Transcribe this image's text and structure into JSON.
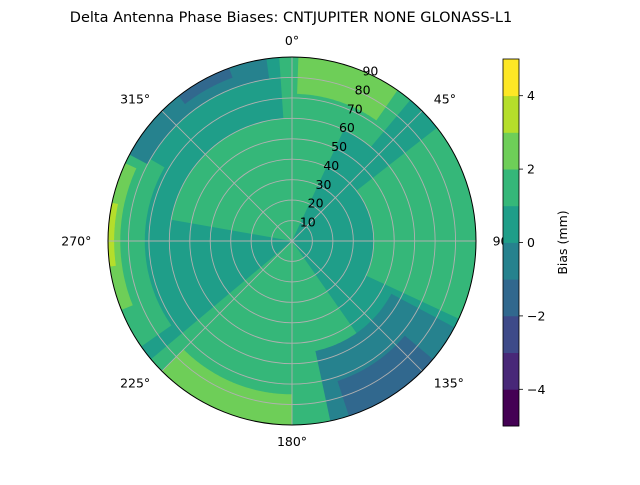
{
  "chart_data": {
    "type": "heatmap",
    "projection": "polar",
    "title": "Delta Antenna Phase Biases: CNTJUPITER      NONE GLONASS-L1",
    "colorbar": {
      "label": "Bias (mm)",
      "range": [
        -5,
        5
      ],
      "levels": [
        -5,
        -4.5,
        -4,
        -3.5,
        -3,
        -2.5,
        -2,
        -1.5,
        -1,
        -0.5,
        0,
        0.5,
        1,
        1.5,
        2,
        2.5,
        3,
        3.5,
        4,
        4.5,
        5
      ],
      "tick_values": [
        -4,
        -2,
        0,
        2,
        4
      ],
      "tick_labels": [
        "−4",
        "−2",
        "0",
        "2",
        "4"
      ],
      "colors": [
        "#440154",
        "#482878",
        "#3e4a89",
        "#31688e",
        "#26828e",
        "#1f9e89",
        "#35b779",
        "#6ece58",
        "#b5de2b",
        "#fde725"
      ],
      "placement": "right"
    },
    "azimuth_axis": {
      "direction": "clockwise",
      "zero_location": "top",
      "tick_values": [
        0,
        45,
        90,
        135,
        180,
        225,
        270,
        315
      ],
      "tick_labels": [
        "0°",
        "45°",
        "90",
        "135°",
        "180°",
        "225°",
        "270°",
        "315°"
      ]
    },
    "radial_axis": {
      "quantity": "zenith angle (deg)",
      "range": [
        0,
        90
      ],
      "tick_values": [
        10,
        20,
        30,
        40,
        50,
        60,
        70,
        80,
        90
      ],
      "tick_labels": [
        "10",
        "20",
        "30",
        "40",
        "50",
        "60",
        "70",
        "80",
        "90"
      ]
    },
    "grid": true,
    "regions": [
      {
        "level_range": [
          -0.5,
          0.5
        ],
        "description": "background"
      },
      {
        "level_range": [
          0.5,
          1.5
        ],
        "azimuth_range": [
          -80,
          25
        ],
        "radius_range": [
          0,
          60
        ]
      },
      {
        "level_range": [
          0.5,
          1.5
        ],
        "azimuth_range": [
          -4,
          40
        ],
        "radius_range": [
          60,
          90
        ]
      },
      {
        "level_range": [
          0.5,
          1.5
        ],
        "azimuth_range": [
          52,
          115
        ],
        "radius_range": [
          40,
          90
        ]
      },
      {
        "level_range": [
          0.5,
          1.5
        ],
        "azimuth_range": [
          145,
          230
        ],
        "radius_range": [
          0,
          90
        ]
      },
      {
        "level_range": [
          0.5,
          1.5
        ],
        "azimuth_range": [
          235,
          300
        ],
        "radius_range": [
          72,
          90
        ]
      },
      {
        "level_range": [
          1.5,
          2.5
        ],
        "azimuth_range": [
          2,
          35
        ],
        "radius_range": [
          72,
          90
        ]
      },
      {
        "level_range": [
          1.5,
          2.5
        ],
        "azimuth_range": [
          180,
          225
        ],
        "radius_range": [
          75,
          90
        ]
      },
      {
        "level_range": [
          1.5,
          2.5
        ],
        "azimuth_range": [
          248,
          295
        ],
        "radius_range": [
          84,
          90
        ]
      },
      {
        "level_range": [
          2.5,
          3.5
        ],
        "azimuth_range": [
          262,
          282
        ],
        "radius_range": [
          87,
          90
        ]
      },
      {
        "level_range": [
          -1.5,
          -0.5
        ],
        "azimuth_range": [
          298,
          352
        ],
        "radius_range": [
          80,
          90
        ]
      },
      {
        "level_range": [
          -1.5,
          -0.5
        ],
        "azimuth_range": [
          118,
          168
        ],
        "radius_range": [
          55,
          90
        ]
      },
      {
        "level_range": [
          -2.5,
          -1.5
        ],
        "azimuth_range": [
          322,
          340
        ],
        "radius_range": [
          85,
          90
        ]
      },
      {
        "level_range": [
          -2.5,
          -1.5
        ],
        "azimuth_range": [
          130,
          162
        ],
        "radius_range": [
          72,
          90
        ]
      }
    ]
  }
}
